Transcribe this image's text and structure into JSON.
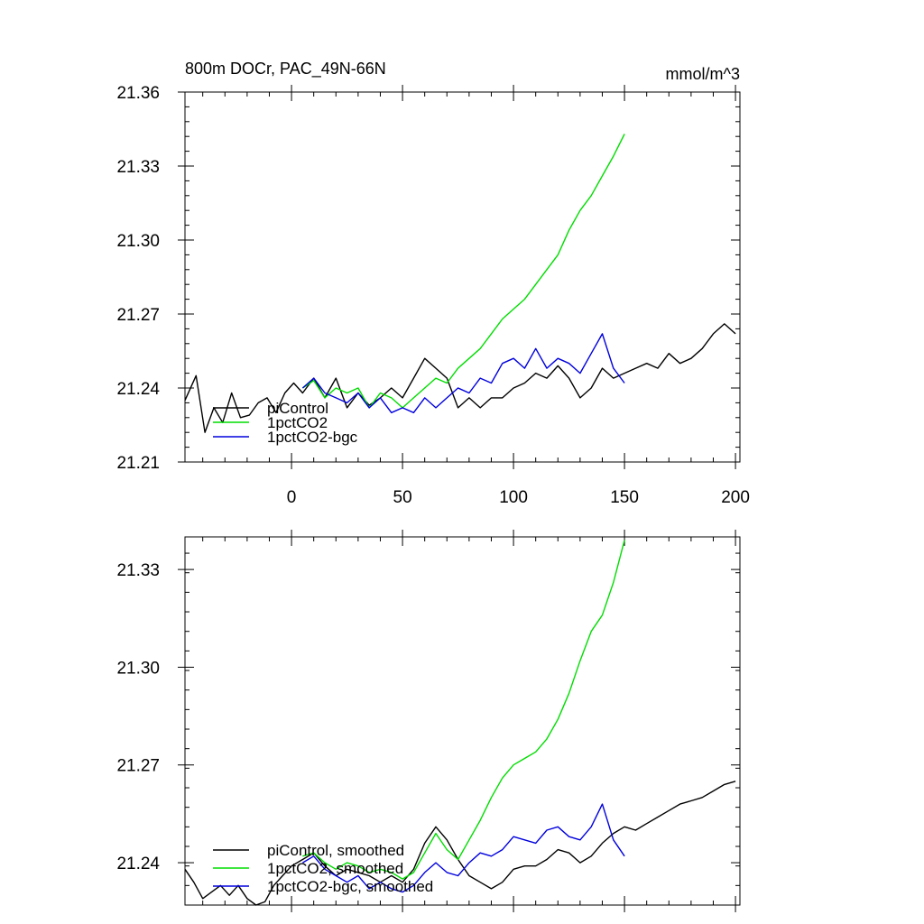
{
  "chart_data": [
    {
      "type": "line",
      "title": "800m DOCr, PAC_49N-66N",
      "units": "mmol/m^3",
      "xlim": [
        -48,
        202
      ],
      "ylim": [
        21.21,
        21.36
      ],
      "xticks": [
        0,
        50,
        100,
        150,
        200
      ],
      "xtick_labels": [
        "0",
        "50",
        "100",
        "150",
        "200"
      ],
      "yticks": [
        21.21,
        21.24,
        21.27,
        21.3,
        21.33,
        21.36
      ],
      "ytick_labels": [
        "21.21",
        "21.24",
        "21.27",
        "21.30",
        "21.33",
        "21.36"
      ],
      "legend_position": "bottom-left",
      "series": [
        {
          "name": "piControl",
          "color": "#000000",
          "x": [
            -48,
            -43,
            -39,
            -35,
            -31,
            -27,
            -23,
            -19,
            -15,
            -11,
            -7,
            -3,
            1,
            5,
            10,
            15,
            20,
            25,
            30,
            35,
            40,
            45,
            50,
            55,
            60,
            65,
            70,
            75,
            80,
            85,
            90,
            95,
            100,
            105,
            110,
            115,
            120,
            125,
            130,
            135,
            140,
            145,
            150,
            155,
            160,
            165,
            170,
            175,
            180,
            185,
            190,
            195,
            200
          ],
          "y": [
            21.235,
            21.245,
            21.222,
            21.232,
            21.226,
            21.238,
            21.228,
            21.229,
            21.234,
            21.236,
            21.23,
            21.238,
            21.242,
            21.238,
            21.244,
            21.236,
            21.244,
            21.232,
            21.238,
            21.233,
            21.236,
            21.24,
            21.236,
            21.244,
            21.252,
            21.248,
            21.244,
            21.232,
            21.236,
            21.232,
            21.236,
            21.236,
            21.24,
            21.242,
            21.246,
            21.244,
            21.249,
            21.244,
            21.236,
            21.24,
            21.248,
            21.244,
            21.246,
            21.248,
            21.25,
            21.248,
            21.254,
            21.25,
            21.252,
            21.256,
            21.262,
            21.266,
            21.262
          ]
        },
        {
          "name": "1pctCO2",
          "color": "#00dd00",
          "x": [
            5,
            10,
            15,
            20,
            25,
            30,
            35,
            40,
            45,
            50,
            55,
            60,
            65,
            70,
            75,
            80,
            85,
            90,
            95,
            100,
            105,
            110,
            115,
            120,
            125,
            130,
            135,
            140,
            145,
            150
          ],
          "y": [
            21.24,
            21.243,
            21.236,
            21.24,
            21.238,
            21.24,
            21.232,
            21.238,
            21.236,
            21.232,
            21.236,
            21.24,
            21.244,
            21.242,
            21.248,
            21.252,
            21.256,
            21.262,
            21.268,
            21.272,
            21.276,
            21.282,
            21.288,
            21.294,
            21.304,
            21.312,
            21.318,
            21.326,
            21.334,
            21.343
          ]
        },
        {
          "name": "1pctCO2-bgc",
          "color": "#0000dd",
          "x": [
            5,
            10,
            15,
            20,
            25,
            30,
            35,
            40,
            45,
            50,
            55,
            60,
            65,
            70,
            75,
            80,
            85,
            90,
            95,
            100,
            105,
            110,
            115,
            120,
            125,
            130,
            135,
            140,
            145,
            150
          ],
          "y": [
            21.24,
            21.244,
            21.238,
            21.236,
            21.234,
            21.238,
            21.232,
            21.236,
            21.23,
            21.232,
            21.23,
            21.236,
            21.232,
            21.236,
            21.24,
            21.238,
            21.244,
            21.242,
            21.25,
            21.252,
            21.248,
            21.256,
            21.248,
            21.252,
            21.25,
            21.246,
            21.254,
            21.262,
            21.248,
            21.242
          ]
        }
      ]
    },
    {
      "type": "line",
      "xlim": [
        -48,
        202
      ],
      "ylim": [
        21.227,
        21.34
      ],
      "xticks": [
        0,
        50,
        100,
        150,
        200
      ],
      "yticks": [
        21.24,
        21.27,
        21.3,
        21.33
      ],
      "ytick_labels": [
        "21.24",
        "21.27",
        "21.30",
        "21.33"
      ],
      "legend_position": "bottom-left",
      "series": [
        {
          "name": "piControl, smoothed",
          "color": "#000000",
          "x": [
            -48,
            -44,
            -40,
            -36,
            -32,
            -28,
            -24,
            -20,
            -16,
            -12,
            -8,
            -4,
            0,
            5,
            10,
            15,
            20,
            25,
            30,
            35,
            40,
            45,
            50,
            55,
            60,
            65,
            70,
            75,
            80,
            85,
            90,
            95,
            100,
            105,
            110,
            115,
            120,
            125,
            130,
            135,
            140,
            145,
            150,
            155,
            160,
            165,
            170,
            175,
            180,
            185,
            190,
            195,
            200
          ],
          "y": [
            21.238,
            21.234,
            21.229,
            21.231,
            21.233,
            21.23,
            21.233,
            21.229,
            21.227,
            21.228,
            21.233,
            21.236,
            21.239,
            21.241,
            21.243,
            21.239,
            21.236,
            21.238,
            21.237,
            21.236,
            21.234,
            21.236,
            21.234,
            21.238,
            21.246,
            21.251,
            21.247,
            21.241,
            21.236,
            21.234,
            21.232,
            21.234,
            21.238,
            21.239,
            21.239,
            21.241,
            21.244,
            21.243,
            21.24,
            21.242,
            21.246,
            21.249,
            21.251,
            21.25,
            21.252,
            21.254,
            21.256,
            21.258,
            21.259,
            21.26,
            21.262,
            21.264,
            21.265
          ]
        },
        {
          "name": "1pctCO2, smoothed",
          "color": "#00dd00",
          "x": [
            5,
            10,
            15,
            20,
            25,
            30,
            35,
            40,
            45,
            50,
            55,
            60,
            65,
            70,
            75,
            80,
            85,
            90,
            95,
            100,
            105,
            110,
            115,
            120,
            125,
            130,
            135,
            140,
            145,
            150
          ],
          "y": [
            21.242,
            21.243,
            21.24,
            21.238,
            21.24,
            21.239,
            21.237,
            21.238,
            21.237,
            21.235,
            21.237,
            21.243,
            21.249,
            21.244,
            21.241,
            21.247,
            21.253,
            21.26,
            21.266,
            21.27,
            21.272,
            21.274,
            21.278,
            21.284,
            21.292,
            21.302,
            21.311,
            21.316,
            21.326,
            21.339
          ]
        },
        {
          "name": "1pctCO2-bgc, smoothed",
          "color": "#0000dd",
          "x": [
            5,
            10,
            15,
            20,
            25,
            30,
            35,
            40,
            45,
            50,
            55,
            60,
            65,
            70,
            75,
            80,
            85,
            90,
            95,
            100,
            105,
            110,
            115,
            120,
            125,
            130,
            135,
            140,
            145,
            150
          ],
          "y": [
            21.24,
            21.242,
            21.238,
            21.236,
            21.234,
            21.236,
            21.232,
            21.234,
            21.232,
            21.231,
            21.233,
            21.237,
            21.24,
            21.237,
            21.236,
            21.24,
            21.243,
            21.242,
            21.244,
            21.248,
            21.247,
            21.246,
            21.25,
            21.251,
            21.248,
            21.247,
            21.251,
            21.258,
            21.247,
            21.242
          ]
        }
      ]
    }
  ]
}
